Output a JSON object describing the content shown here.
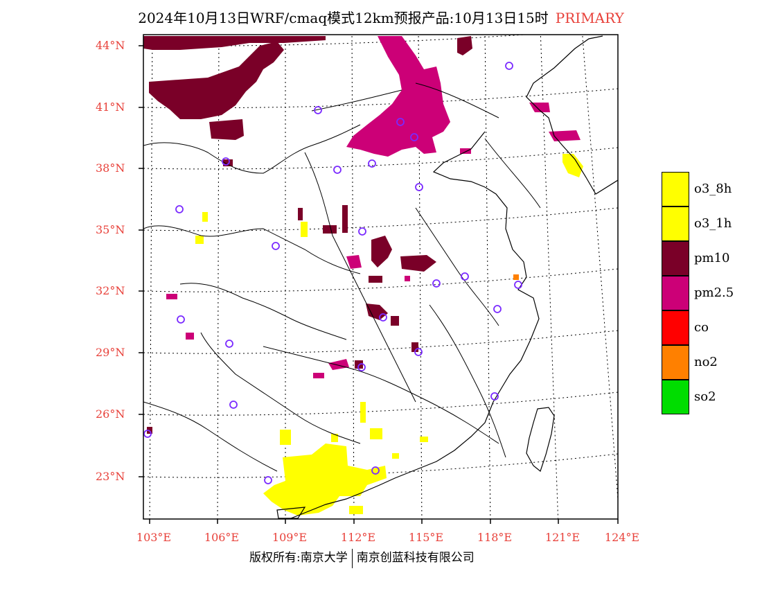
{
  "title": {
    "text": "2024年10月13日WRF/cmaq模式12km预报产品:10月13日15时",
    "tag": "PRIMARY"
  },
  "map": {
    "lat_labels": [
      "44°N",
      "41°N",
      "38°N",
      "35°N",
      "32°N",
      "29°N",
      "26°N",
      "23°N"
    ],
    "lon_labels": [
      "103°E",
      "106°E",
      "109°E",
      "112°E",
      "115°E",
      "118°E",
      "121°E",
      "124°E"
    ],
    "region": "East/Central China",
    "colors": {
      "o3_8h": "#ffff00",
      "o3_1h": "#ffff00",
      "pm10": "#7a0028",
      "pm25": "#cc0077",
      "co": "#ff0000",
      "no2": "#ff8000",
      "so2": "#00dd00",
      "station": "#7a2aff"
    }
  },
  "legend": [
    {
      "label": "o3_8h",
      "color": "#ffff00"
    },
    {
      "label": "o3_1h",
      "color": "#ffff00"
    },
    {
      "label": "pm10",
      "color": "#7a0028"
    },
    {
      "label": "pm2.5",
      "color": "#cc0077"
    },
    {
      "label": "co",
      "color": "#ff0000"
    },
    {
      "label": "no2",
      "color": "#ff8000"
    },
    {
      "label": "so2",
      "color": "#00dd00"
    }
  ],
  "footer": {
    "left": "版权所有:南京大学",
    "right": "南京创蓝科技有限公司"
  }
}
